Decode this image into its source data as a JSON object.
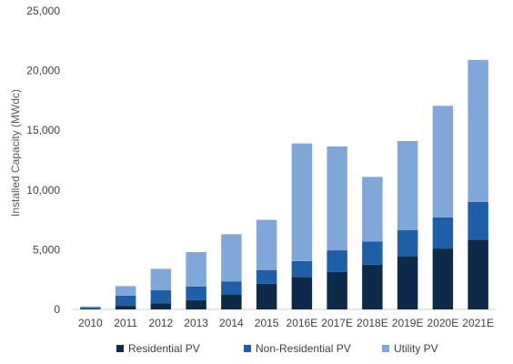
{
  "chart_data": {
    "type": "bar",
    "stacked": true,
    "title": "",
    "xlabel": "",
    "ylabel": "Installed Capacity (MWdc)",
    "ylim": [
      0,
      25000
    ],
    "yticks": [
      0,
      5000,
      10000,
      15000,
      20000,
      25000
    ],
    "ytick_labels": [
      "0",
      "5,000",
      "10,000",
      "15,000",
      "20,000",
      "25,000"
    ],
    "grid": false,
    "legend_position": "bottom",
    "categories": [
      "2010",
      "2011",
      "2012",
      "2013",
      "2014",
      "2015",
      "2016E",
      "2017E",
      "2018E",
      "2019E",
      "2020E",
      "2021E"
    ],
    "series": [
      {
        "name": "Residential PV",
        "color": "#0e2a4a",
        "values": [
          60,
          300,
          500,
          780,
          1250,
          2150,
          2700,
          3150,
          3750,
          4450,
          5100,
          5850
        ]
      },
      {
        "name": "Non-Residential PV",
        "color": "#1f5fa8",
        "values": [
          100,
          860,
          1100,
          1130,
          1100,
          1150,
          1350,
          1800,
          1950,
          2200,
          2600,
          3150
        ]
      },
      {
        "name": "Utility PV",
        "color": "#7fa8d8",
        "values": [
          90,
          790,
          1800,
          2890,
          3950,
          4200,
          9850,
          8700,
          5400,
          7450,
          9350,
          11900
        ]
      }
    ]
  }
}
